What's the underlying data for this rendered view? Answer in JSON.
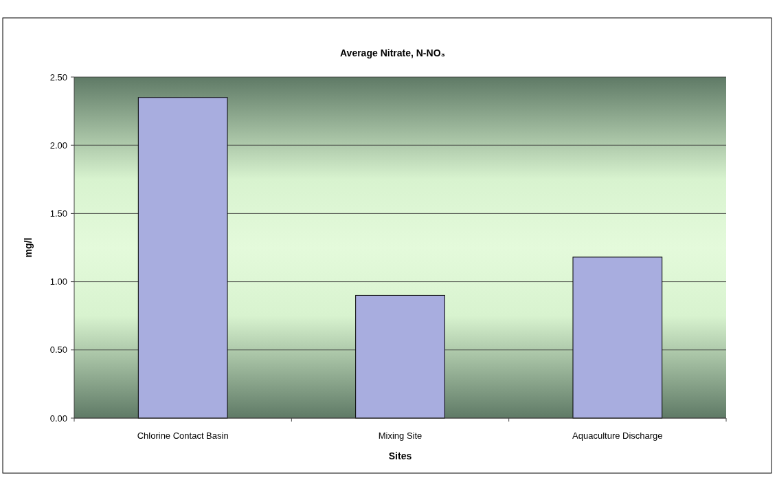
{
  "chart_data": {
    "type": "bar",
    "title": "Average Nitrate, N-NO₃",
    "xlabel": "Sites",
    "ylabel": "mg/l",
    "categories": [
      "Chlorine Contact Basin",
      "Mixing Site",
      "Aquaculture Discharge"
    ],
    "values": [
      2.35,
      0.9,
      1.18
    ],
    "color": "#a8addf",
    "ylim": [
      0,
      2.5
    ],
    "yticks": [
      {
        "value": 0,
        "label": "0.00"
      },
      {
        "value": 0.5,
        "label": "0.50"
      },
      {
        "value": 1,
        "label": "1.00"
      },
      {
        "value": 1.5,
        "label": "1.50"
      },
      {
        "value": 2,
        "label": "2.00"
      },
      {
        "value": 2.5,
        "label": "2.50"
      }
    ],
    "grid": "y"
  }
}
